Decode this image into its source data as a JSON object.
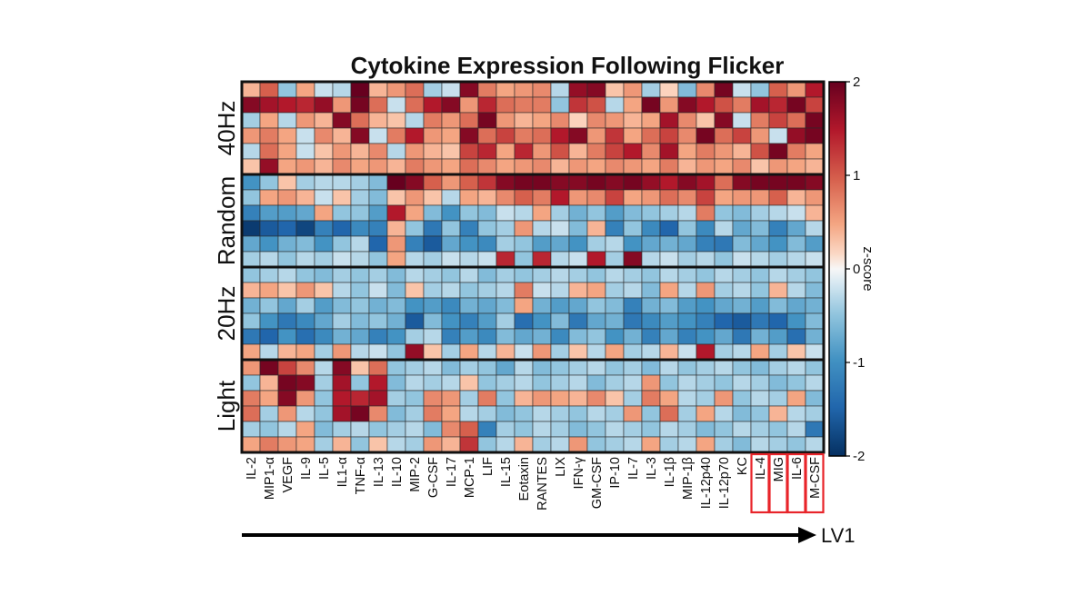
{
  "chart_data": {
    "type": "heatmap",
    "title": "Cytokine Expression Following Flicker",
    "xlabel": "LV1",
    "colorbar": {
      "label": "z-score",
      "range": [
        -2,
        2
      ],
      "ticks": [
        "2",
        "1",
        "0",
        "-1",
        "-2"
      ],
      "colormap": "red-white-blue (diverging)"
    },
    "columns": [
      "IL-2",
      "MIP1-α",
      "VEGF",
      "IL-9",
      "IL-5",
      "IL1-α",
      "TNF-α",
      "IL-13",
      "IL-10",
      "MIP-2",
      "G-CSF",
      "IL-17",
      "MCP-1",
      "LIF",
      "IL-15",
      "Eotaxin",
      "RANTES",
      "LIX",
      "IFN-γ",
      "GM-CSF",
      "IP-10",
      "IL-7",
      "IL-3",
      "IL-1β",
      "MIP-1β",
      "IL-12p40",
      "IL-12p70",
      "KC",
      "IL-4",
      "MIG",
      "IL-6",
      "M-CSF"
    ],
    "highlighted_columns": [
      "IL-4",
      "MIG",
      "IL-6",
      "M-CSF"
    ],
    "groups": [
      {
        "name": "40Hz",
        "rows": [
          [
            0.4,
            1.0,
            -0.5,
            0.5,
            -0.2,
            -0.3,
            2.0,
            0.4,
            0.6,
            0.9,
            -0.4,
            -0.2,
            1.8,
            0.8,
            0.5,
            0.6,
            0.7,
            -0.3,
            1.7,
            1.8,
            0.3,
            0.6,
            -0.4,
            0.2,
            -0.6,
            0.7,
            1.9,
            -0.2,
            -0.5,
            1.0,
            0.6,
            1.5
          ],
          [
            1.8,
            1.6,
            1.5,
            1.4,
            1.7,
            0.6,
            1.9,
            0.9,
            -0.2,
            0.9,
            1.5,
            1.8,
            0.6,
            1.4,
            0.9,
            0.8,
            0.8,
            -0.5,
            1.3,
            1.1,
            -0.3,
            0.5,
            1.9,
            0.6,
            1.8,
            1.5,
            1.1,
            0.8,
            1.6,
            1.4,
            1.9,
            1.2
          ],
          [
            -0.4,
            0.5,
            -0.3,
            0.6,
            0.4,
            1.8,
            0.9,
            0.4,
            0.3,
            -0.3,
            0.8,
            0.6,
            0.9,
            1.9,
            0.6,
            0.4,
            0.5,
            0.7,
            0.2,
            0.7,
            0.6,
            0.4,
            0.5,
            1.6,
            0.7,
            0.3,
            1.8,
            -0.2,
            0.8,
            1.2,
            0.9,
            1.9
          ],
          [
            0.6,
            0.8,
            0.5,
            -0.2,
            0.7,
            0.4,
            1.8,
            -0.2,
            0.8,
            1.5,
            0.6,
            0.5,
            1.8,
            0.9,
            1.2,
            0.8,
            0.9,
            1.5,
            1.8,
            0.6,
            1.3,
            0.5,
            0.9,
            1.2,
            0.7,
            1.9,
            0.9,
            1.2,
            0.6,
            -0.2,
            1.7,
            1.9
          ],
          [
            -0.3,
            0.9,
            0.5,
            -0.2,
            0.3,
            0.6,
            0.4,
            0.7,
            -0.3,
            0.6,
            0.4,
            0.3,
            1.2,
            1.4,
            0.5,
            1.4,
            0.6,
            1.1,
            0.4,
            0.8,
            1.2,
            1.5,
            0.7,
            1.6,
            0.5,
            0.8,
            0.6,
            0.4,
            1.1,
            1.9,
            0.8,
            0.5
          ],
          [
            0.3,
            1.7,
            0.5,
            0.6,
            0.4,
            0.7,
            0.5,
            0.6,
            0.4,
            0.8,
            0.6,
            0.5,
            0.9,
            0.7,
            0.5,
            0.6,
            0.7,
            0.4,
            0.6,
            0.5,
            0.7,
            0.6,
            0.5,
            0.8,
            0.4,
            0.6,
            0.5,
            0.7,
            0.3,
            0.6,
            0.5,
            0.4
          ]
        ]
      },
      {
        "name": "Random",
        "rows": [
          [
            -1.0,
            -0.5,
            0.3,
            -0.4,
            -0.3,
            -0.3,
            -0.4,
            -0.6,
            2.0,
            1.8,
            1.0,
            0.6,
            1.0,
            1.3,
            1.8,
            1.9,
            1.9,
            1.8,
            1.8,
            1.9,
            1.8,
            1.9,
            1.7,
            1.5,
            1.8,
            1.6,
            0.9,
            1.8,
            1.9,
            1.9,
            1.9,
            1.8
          ],
          [
            -0.5,
            0.5,
            0.6,
            0.4,
            -0.2,
            0.3,
            -0.4,
            -0.6,
            0.3,
            0.6,
            0.3,
            -0.3,
            0.5,
            0.4,
            0.7,
            1.0,
            0.8,
            1.5,
            0.6,
            0.7,
            1.2,
            0.5,
            0.6,
            0.9,
            0.7,
            1.2,
            0.5,
            0.6,
            0.6,
            1.0,
            0.4,
            0.6
          ],
          [
            -1.2,
            -0.9,
            -0.9,
            -0.8,
            0.5,
            -0.5,
            -0.5,
            -0.9,
            1.5,
            0.5,
            -0.6,
            -1.0,
            -0.5,
            -0.6,
            -0.2,
            -0.3,
            0.5,
            -0.4,
            -0.7,
            -0.5,
            -0.9,
            -0.6,
            -0.5,
            -0.4,
            -0.3,
            0.8,
            -0.5,
            -0.6,
            -0.4,
            -0.3,
            -0.2,
            0.4
          ],
          [
            -1.9,
            -1.6,
            -1.5,
            -1.8,
            -1.2,
            -1.5,
            -1.1,
            -1.2,
            0.4,
            -0.5,
            -1.3,
            -0.5,
            -1.2,
            -0.5,
            -0.4,
            0.6,
            -0.3,
            -0.2,
            -0.6,
            0.4,
            -1.2,
            -0.5,
            -1.1,
            -1.5,
            -0.5,
            -1.1,
            -0.3,
            -0.8,
            -0.6,
            -1.2,
            -0.8,
            -0.3
          ],
          [
            -0.8,
            -1.0,
            -0.7,
            -0.6,
            -1.0,
            -0.5,
            -0.3,
            -1.5,
            0.6,
            -1.2,
            -1.6,
            -0.8,
            -1.0,
            -1.1,
            -0.4,
            -0.5,
            -0.9,
            -0.8,
            -1.0,
            -0.4,
            -0.3,
            -1.0,
            -0.8,
            -0.7,
            -0.8,
            -1.2,
            -1.3,
            -0.6,
            -0.8,
            -1.0,
            -0.6,
            -0.9
          ],
          [
            -0.4,
            -0.3,
            -0.5,
            -0.3,
            -0.4,
            -0.2,
            -0.3,
            -0.5,
            0.5,
            -0.3,
            -0.4,
            -0.2,
            -0.3,
            -0.2,
            1.4,
            -0.5,
            1.4,
            -0.3,
            -0.2,
            1.5,
            -0.4,
            1.8,
            -0.3,
            -0.2,
            -0.4,
            -0.3,
            -0.5,
            -0.2,
            -0.3,
            -0.4,
            -0.3,
            -0.2
          ]
        ]
      },
      {
        "name": "20Hz",
        "rows": [
          [
            -0.5,
            -0.4,
            -0.3,
            -0.5,
            -0.6,
            -0.4,
            -0.5,
            -0.4,
            -0.6,
            -0.3,
            -0.4,
            -0.5,
            -0.3,
            -0.6,
            -0.4,
            -0.5,
            -0.4,
            -0.3,
            -0.4,
            -0.5,
            -0.3,
            -0.4,
            -0.5,
            -0.3,
            -0.4,
            -0.5,
            -0.3,
            -0.4,
            -0.5,
            -0.3,
            -0.4,
            -0.5
          ],
          [
            0.4,
            0.5,
            0.3,
            0.6,
            0.3,
            -0.3,
            -0.5,
            -0.2,
            -0.6,
            0.3,
            -0.4,
            -0.3,
            -0.5,
            -0.4,
            -0.3,
            0.8,
            -0.2,
            -0.3,
            0.4,
            0.5,
            -0.4,
            -0.3,
            -0.6,
            0.5,
            -0.3,
            0.6,
            -0.4,
            -0.3,
            -0.5,
            0.4,
            -0.3,
            -0.6
          ],
          [
            -0.7,
            -0.5,
            -0.8,
            -0.4,
            -0.9,
            -0.6,
            -0.5,
            -0.7,
            -0.6,
            -1.0,
            -0.9,
            -1.1,
            -0.7,
            -0.8,
            -0.6,
            0.5,
            -0.7,
            -0.9,
            -0.8,
            -0.5,
            -0.6,
            -1.2,
            -0.7,
            -0.6,
            -0.9,
            -1.0,
            -0.8,
            -0.7,
            -0.9,
            -0.6,
            -0.8,
            -0.7
          ],
          [
            -0.5,
            -1.0,
            -1.3,
            -1.1,
            -0.8,
            -0.4,
            -0.6,
            -0.5,
            -0.7,
            -1.6,
            -0.6,
            -1.0,
            -1.2,
            -0.9,
            -0.4,
            -1.4,
            -1.0,
            -0.6,
            -1.3,
            -0.8,
            -0.7,
            -1.3,
            -1.1,
            -0.9,
            -1.0,
            -1.2,
            -1.5,
            -1.6,
            -1.3,
            -1.5,
            -1.0,
            -0.6
          ],
          [
            -1.3,
            -1.5,
            -1.0,
            -1.4,
            -1.1,
            -0.7,
            -0.8,
            -1.2,
            -1.0,
            -0.4,
            -0.3,
            -1.2,
            -0.9,
            -1.1,
            -0.6,
            -0.8,
            -0.7,
            -1.1,
            -0.6,
            -0.5,
            -1.0,
            -0.7,
            -1.2,
            -0.8,
            -1.2,
            -1.0,
            -0.8,
            -1.3,
            -0.7,
            -0.9,
            -1.4,
            -0.7
          ],
          [
            0.5,
            -0.3,
            0.4,
            0.5,
            -0.4,
            0.6,
            -0.3,
            -0.2,
            -0.5,
            1.7,
            0.3,
            -0.4,
            0.5,
            -0.3,
            0.4,
            -0.2,
            0.6,
            -0.4,
            0.3,
            -0.3,
            0.5,
            -0.4,
            -0.3,
            0.4,
            -0.2,
            1.5,
            -0.4,
            -0.3,
            0.5,
            -0.4,
            0.3,
            -0.2
          ]
        ]
      },
      {
        "name": "Light",
        "rows": [
          [
            0.6,
            1.9,
            1.2,
            0.7,
            -0.3,
            1.8,
            0.3,
            0.9,
            -0.5,
            -0.4,
            -0.3,
            -0.6,
            -0.4,
            -0.5,
            -0.8,
            -0.3,
            -0.6,
            -0.5,
            -0.4,
            -0.3,
            -0.5,
            -0.4,
            -0.6,
            -0.3,
            -0.5,
            -0.4,
            -0.3,
            -0.5,
            -0.6,
            -0.4,
            -0.3,
            -0.5
          ],
          [
            -0.5,
            0.4,
            1.9,
            1.8,
            -0.4,
            1.6,
            -0.5,
            1.5,
            -0.6,
            -0.3,
            -0.4,
            -0.3,
            0.3,
            -0.5,
            -0.4,
            -0.3,
            -0.5,
            -0.4,
            -0.3,
            -0.6,
            -0.4,
            -0.3,
            0.6,
            -0.5,
            -0.3,
            -0.4,
            -0.5,
            -0.3,
            -0.4,
            -0.6,
            -0.5,
            -0.3
          ],
          [
            0.8,
            0.5,
            1.8,
            0.6,
            -0.5,
            1.5,
            1.4,
            1.6,
            -0.4,
            -0.5,
            0.7,
            0.6,
            -0.4,
            0.8,
            -0.5,
            0.4,
            0.6,
            0.5,
            0.4,
            0.7,
            0.3,
            -0.4,
            0.8,
            0.5,
            -0.3,
            -0.4,
            0.6,
            -0.5,
            -0.3,
            -0.4,
            0.5,
            -0.6
          ],
          [
            0.9,
            -0.4,
            0.6,
            -0.3,
            -0.5,
            1.6,
            1.9,
            0.7,
            -0.6,
            -0.4,
            0.8,
            0.5,
            -0.3,
            -0.4,
            -0.6,
            -0.5,
            -0.3,
            -0.4,
            -0.5,
            -0.3,
            -0.4,
            0.6,
            -0.5,
            0.9,
            -0.4,
            0.5,
            -0.3,
            -0.6,
            -0.5,
            0.4,
            -0.3,
            -0.4
          ],
          [
            -0.4,
            -0.5,
            -0.3,
            0.5,
            -0.6,
            -0.4,
            -0.3,
            -0.5,
            -0.4,
            -0.3,
            -0.6,
            0.7,
            1.0,
            -1.2,
            -0.4,
            -0.5,
            -0.3,
            -0.4,
            -0.6,
            -0.5,
            -0.3,
            -0.4,
            -0.5,
            -0.3,
            -0.4,
            -0.6,
            -0.5,
            -0.3,
            -0.4,
            -0.5,
            -0.3,
            -1.3
          ],
          [
            0.5,
            0.8,
            0.6,
            0.5,
            -0.4,
            0.4,
            -0.5,
            0.3,
            -0.3,
            -0.4,
            0.6,
            0.4,
            1.3,
            -0.5,
            -0.3,
            0.4,
            -0.4,
            -0.3,
            0.6,
            -0.5,
            -0.4,
            -0.3,
            0.5,
            -0.4,
            -0.3,
            0.5,
            -0.4,
            -0.6,
            -0.3,
            -0.4,
            -0.5,
            -0.3
          ]
        ]
      }
    ]
  }
}
